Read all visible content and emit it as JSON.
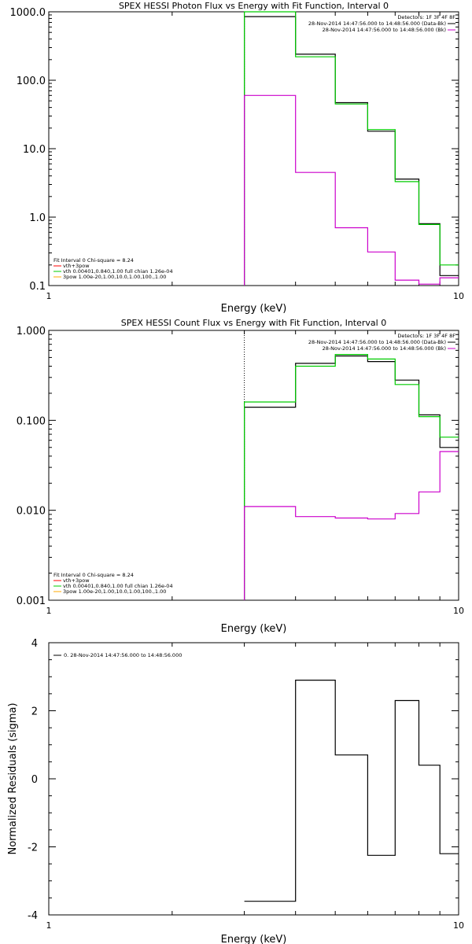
{
  "chart_data": [
    {
      "type": "line",
      "title": "SPEX HESSI Photon Flux vs Energy with Fit Function, Interval 0",
      "xlabel": "Energy (keV)",
      "ylabel": "",
      "xscale": "log",
      "yscale": "log",
      "xlim": [
        1,
        10
      ],
      "ylim": [
        0.1,
        1000
      ],
      "xticks": [
        "1",
        "10"
      ],
      "yticks": [
        "0.1",
        "1.0",
        "10.0",
        "100.0",
        "1000.0"
      ],
      "vline_x": 3.0,
      "info": {
        "detectors": "Detectors: 1F 3F 4F 8F",
        "time1": "28-Nov-2014 14:47:56.000 to 14:48:56.000 (Data-Bk)",
        "time2": "28-Nov-2014 14:47:56.000 to 14:48:56.000 (Bk)"
      },
      "legend": {
        "header": "Fit Interval 0   Chi-square = 8.24",
        "items": [
          {
            "label": "vth+3pow",
            "color": "#ff0000"
          },
          {
            "label": "vth 0.00401,0.840,1.00  full chian 1.26e-04",
            "color": "#00cc00"
          },
          {
            "label": "3pow 1.00e-20,1.00,10.0,1.00,100.,1.00",
            "color": "#ffaa00"
          }
        ]
      },
      "series": [
        {
          "name": "Data-Bk",
          "color": "#000000",
          "edges": [
            3,
            4,
            5,
            6,
            7,
            8,
            9,
            10
          ],
          "values": [
            850,
            240,
            47,
            18,
            3.6,
            0.8,
            0.14
          ]
        },
        {
          "name": "vth+3pow",
          "color": "#00cc00",
          "edges": [
            3,
            4,
            5,
            6,
            7,
            8,
            9,
            10
          ],
          "values": [
            1000,
            220,
            45,
            19,
            3.3,
            0.78,
            0.2
          ]
        },
        {
          "name": "Bk",
          "color": "#cc00cc",
          "edges": [
            3,
            4,
            5,
            6,
            7,
            8,
            9,
            10
          ],
          "values": [
            60,
            4.5,
            0.7,
            0.31,
            0.12,
            0.105,
            0.13
          ]
        }
      ]
    },
    {
      "type": "line",
      "title": "SPEX HESSI Count Flux vs Energy with Fit Function, Interval 0",
      "xlabel": "Energy (keV)",
      "ylabel": "",
      "xscale": "log",
      "yscale": "log",
      "xlim": [
        1,
        10
      ],
      "ylim": [
        0.001,
        1.0
      ],
      "xticks": [
        "1",
        "10"
      ],
      "yticks": [
        "0.001",
        "0.010",
        "0.100",
        "1.000"
      ],
      "vline_x": 3.0,
      "info": {
        "detectors": "Detectors: 1F 3F 4F 8F",
        "time1": "28-Nov-2014 14:47:56.000 to 14:48:56.000 (Data-Bk)",
        "time2": "28-Nov-2014 14:47:56.000 to 14:48:56.000 (Bk)"
      },
      "legend": {
        "header": "Fit Interval 0   Chi-square = 8.24",
        "items": [
          {
            "label": "vth+3pow",
            "color": "#ff0000"
          },
          {
            "label": "vth 0.00401,0.840,1.00  full chian 1.26e-04",
            "color": "#00cc00"
          },
          {
            "label": "3pow 1.00e-20,1.00,10.0,1.00,100.,1.00",
            "color": "#ffaa00"
          }
        ]
      },
      "series": [
        {
          "name": "Data-Bk",
          "color": "#000000",
          "edges": [
            3,
            4,
            5,
            6,
            7,
            8,
            9,
            10
          ],
          "values": [
            0.14,
            0.43,
            0.52,
            0.45,
            0.28,
            0.115,
            0.05
          ]
        },
        {
          "name": "vth+3pow",
          "color": "#00cc00",
          "edges": [
            3,
            4,
            5,
            6,
            7,
            8,
            9,
            10
          ],
          "values": [
            0.16,
            0.4,
            0.54,
            0.48,
            0.25,
            0.11,
            0.065
          ]
        },
        {
          "name": "Bk",
          "color": "#cc00cc",
          "edges": [
            3,
            4,
            5,
            6,
            7,
            8,
            9,
            10
          ],
          "values": [
            0.011,
            0.0085,
            0.0082,
            0.008,
            0.0092,
            0.016,
            0.045
          ]
        }
      ]
    },
    {
      "type": "line",
      "title": "",
      "xlabel": "Energy (keV)",
      "ylabel": "Normalized Residuals (sigma)",
      "xscale": "log",
      "yscale": "linear",
      "xlim": [
        1,
        10
      ],
      "ylim": [
        -4,
        4
      ],
      "xticks": [
        "1",
        "10"
      ],
      "yticks": [
        "-4",
        "-2",
        "0",
        "2",
        "4"
      ],
      "legend": {
        "items": [
          {
            "label": "0. 28-Nov-2014 14:47:56.000 to 14:48:56.000",
            "color": "#000000"
          }
        ]
      },
      "series": [
        {
          "name": "0. 28-Nov-2014 14:47:56.000 to 14:48:56.000",
          "color": "#000000",
          "edges": [
            3,
            4,
            5,
            6,
            7,
            8,
            9,
            10
          ],
          "values": [
            -3.6,
            2.9,
            0.7,
            -2.25,
            2.3,
            0.4,
            -2.2
          ]
        }
      ]
    }
  ]
}
